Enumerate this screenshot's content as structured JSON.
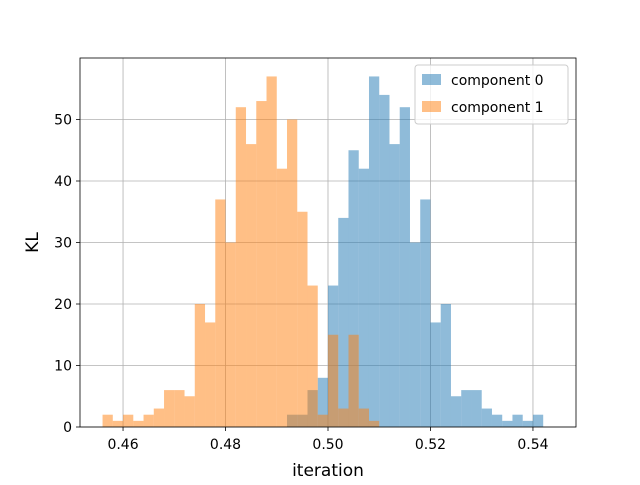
{
  "chart_data": {
    "type": "histogram",
    "title": "",
    "xlabel": "iteration",
    "ylabel": "KL",
    "xlim": [
      0.4516,
      0.5484
    ],
    "ylim": [
      0,
      60
    ],
    "xticks": [
      0.46,
      0.48,
      0.5,
      0.52,
      0.54
    ],
    "xtick_labels": [
      "0.46",
      "0.48",
      "0.50",
      "0.52",
      "0.54"
    ],
    "yticks": [
      0,
      10,
      20,
      30,
      40,
      50
    ],
    "ytick_labels": [
      "0",
      "10",
      "20",
      "30",
      "40",
      "50"
    ],
    "grid": true,
    "legend_position": "top-right",
    "series": [
      {
        "name": "component 0",
        "color": "#1f77b4",
        "alpha": 0.5,
        "bin_start": 0.492,
        "bin_width": 0.002,
        "counts": [
          2,
          2,
          6,
          8,
          23,
          34,
          45,
          42,
          57,
          54,
          46,
          52,
          30,
          37,
          17,
          20,
          5,
          6,
          6,
          3,
          2,
          1,
          2,
          1,
          2
        ]
      },
      {
        "name": "component 1",
        "color": "#ff7f0e",
        "alpha": 0.5,
        "bin_start": 0.456,
        "bin_width": 0.002,
        "counts": [
          2,
          1,
          2,
          1,
          2,
          3,
          6,
          6,
          5,
          20,
          17,
          37,
          30,
          52,
          46,
          53,
          57,
          42,
          50,
          35,
          23,
          2,
          15,
          3,
          15,
          3,
          1
        ]
      }
    ]
  }
}
